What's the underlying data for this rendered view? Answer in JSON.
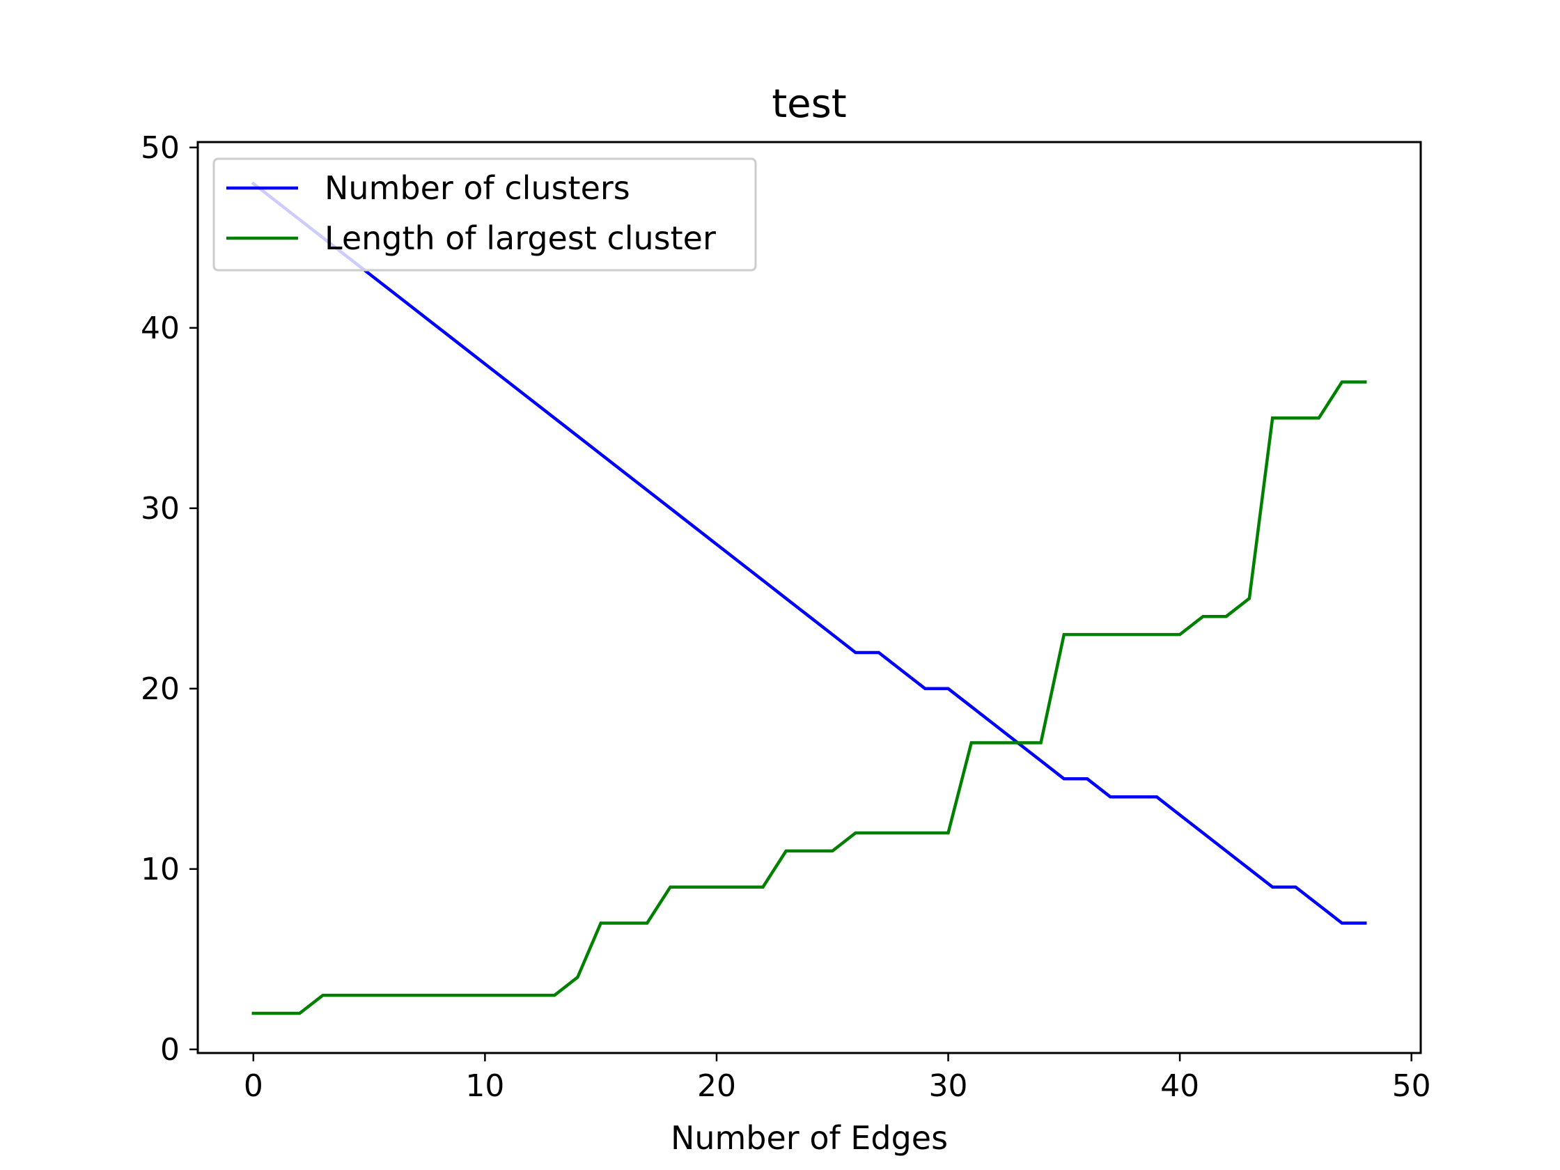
{
  "chart_data": {
    "type": "line",
    "title": "test",
    "xlabel": "Number of Edges",
    "ylabel": "",
    "xlim": [
      -2.4,
      50.4
    ],
    "ylim": [
      -0.2,
      50.3
    ],
    "xticks": [
      0,
      10,
      20,
      30,
      40,
      50
    ],
    "yticks": [
      0,
      10,
      20,
      30,
      40,
      50
    ],
    "grid": false,
    "legend_position": "top-left",
    "x": [
      0,
      1,
      2,
      3,
      4,
      5,
      6,
      7,
      8,
      9,
      10,
      11,
      12,
      13,
      14,
      15,
      16,
      17,
      18,
      19,
      20,
      21,
      22,
      23,
      24,
      25,
      26,
      27,
      28,
      29,
      30,
      31,
      32,
      33,
      34,
      35,
      36,
      37,
      38,
      39,
      40,
      41,
      42,
      43,
      44,
      45,
      46,
      47,
      48
    ],
    "series": [
      {
        "name": "Number of clusters",
        "color": "#0000ff",
        "values": [
          48,
          47,
          46,
          45,
          44,
          43,
          42,
          41,
          40,
          39,
          38,
          37,
          36,
          35,
          34,
          33,
          32,
          31,
          30,
          29,
          28,
          27,
          26,
          25,
          24,
          23,
          22,
          22,
          21,
          20,
          20,
          19,
          18,
          17,
          16,
          15,
          15,
          14,
          14,
          14,
          13,
          12,
          11,
          10,
          9,
          9,
          8,
          7,
          7
        ]
      },
      {
        "name": "Length of largest cluster",
        "color": "#008000",
        "values": [
          2,
          2,
          2,
          3,
          3,
          3,
          3,
          3,
          3,
          3,
          3,
          3,
          3,
          3,
          4,
          7,
          7,
          7,
          9,
          9,
          9,
          9,
          9,
          11,
          11,
          11,
          12,
          12,
          12,
          12,
          12,
          17,
          17,
          17,
          17,
          23,
          23,
          23,
          23,
          23,
          23,
          24,
          24,
          25,
          35,
          35,
          35,
          37,
          37
        ]
      }
    ]
  }
}
